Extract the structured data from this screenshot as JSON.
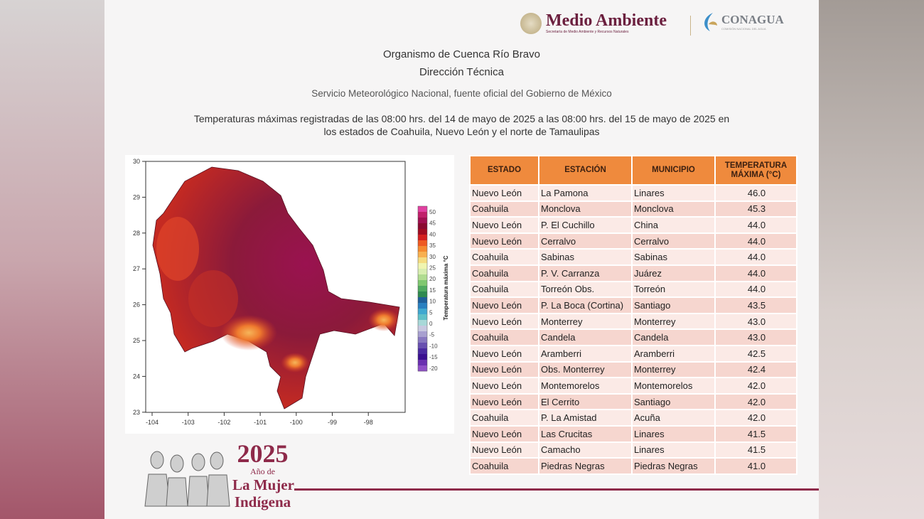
{
  "logos": {
    "medio_ambiente": "Medio Ambiente",
    "medio_ambiente_sub": "Secretaría de Medio Ambiente y Recursos Naturales",
    "conagua": "CONAGUA",
    "conagua_sub": "COMISIÓN NACIONAL DEL AGUA"
  },
  "header": {
    "line1": "Organismo de Cuenca Río Bravo",
    "line2": "Dirección Técnica",
    "line3": "Servicio Meteorológico Nacional, fuente oficial del Gobierno de México",
    "title1": "Temperaturas máximas registradas de las 08:00 hrs. del 14 de mayo de 2025 a las 08:00 hrs. del 15 de mayo de 2025 en",
    "title2": "los estados de Coahuila, Nuevo León y el norte de Tamaulipas"
  },
  "map": {
    "x_ticks": [
      "-104",
      "-103",
      "-102",
      "-101",
      "-100",
      "-99",
      "-98"
    ],
    "y_ticks": [
      "30",
      "29",
      "28",
      "27",
      "26",
      "25",
      "24",
      "23"
    ],
    "colorbar_label": "Temperatura máxima °C",
    "colorbar_ticks": [
      "50",
      "45",
      "40",
      "35",
      "30",
      "25",
      "20",
      "15",
      "10",
      "5",
      "0",
      "-5",
      "-10",
      "-15",
      "-20"
    ]
  },
  "table": {
    "headers": [
      "ESTADO",
      "ESTACIÓN",
      "MUNICIPIO",
      "TEMPERATURA MÁXIMA (°C)"
    ],
    "rows": [
      [
        "Nuevo León",
        "La Pamona",
        "Linares",
        "46.0"
      ],
      [
        "Coahuila",
        "Monclova",
        "Monclova",
        "45.3"
      ],
      [
        "Nuevo León",
        "P. El Cuchillo",
        "China",
        "44.0"
      ],
      [
        "Nuevo León",
        "Cerralvo",
        "Cerralvo",
        "44.0"
      ],
      [
        "Coahuila",
        "Sabinas",
        "Sabinas",
        "44.0"
      ],
      [
        "Coahuila",
        "P. V. Carranza",
        "Juárez",
        "44.0"
      ],
      [
        "Coahuila",
        "Torreón Obs.",
        "Torreón",
        "44.0"
      ],
      [
        "Nuevo León",
        "P. La Boca (Cortina)",
        "Santiago",
        "43.5"
      ],
      [
        "Nuevo León",
        "Monterrey",
        "Monterrey",
        "43.0"
      ],
      [
        "Coahuila",
        "Candela",
        "Candela",
        "43.0"
      ],
      [
        "Nuevo León",
        "Aramberri",
        "Aramberri",
        "42.5"
      ],
      [
        "Nuevo León",
        "Obs. Monterrey",
        "Monterrey",
        "42.4"
      ],
      [
        "Nuevo León",
        "Montemorelos",
        "Montemorelos",
        "42.0"
      ],
      [
        "Nuevo León",
        "El Cerrito",
        "Santiago",
        "42.0"
      ],
      [
        "Coahuila",
        "P. La Amistad",
        "Acuña",
        "42.0"
      ],
      [
        "Nuevo León",
        "Las Crucitas",
        "Linares",
        "41.5"
      ],
      [
        "Nuevo León",
        "Camacho",
        "Linares",
        "41.5"
      ],
      [
        "Coahuila",
        "Piedras Negras",
        "Piedras Negras",
        "41.0"
      ]
    ]
  },
  "footer": {
    "year": "2025",
    "l1": "Año de",
    "l2": "La Mujer",
    "l3": "Indígena"
  },
  "colors": {
    "header_orange": "#ef8a3d",
    "brand": "#8e2a4a"
  }
}
